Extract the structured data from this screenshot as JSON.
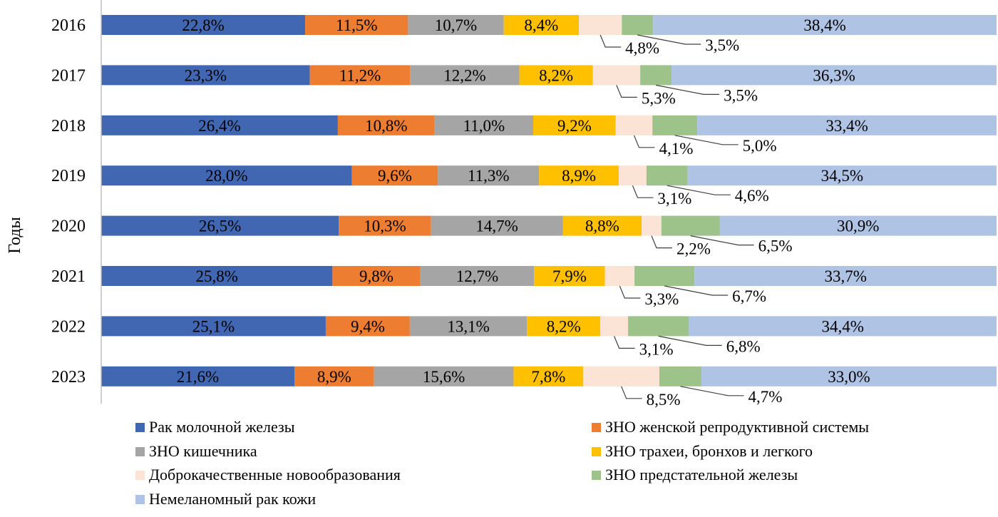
{
  "chart_data": {
    "type": "bar",
    "orientation": "horizontal",
    "stacked": true,
    "normalized": true,
    "ylabel": "Годы",
    "xlabel": "",
    "categories": [
      "2016",
      "2017",
      "2018",
      "2019",
      "2020",
      "2021",
      "2022",
      "2023"
    ],
    "series": [
      {
        "name": "Рак молочной железы",
        "color": "#4267B2",
        "values": [
          22.8,
          23.3,
          26.4,
          28.0,
          26.5,
          25.8,
          25.1,
          21.6
        ],
        "labels": [
          "22,8%",
          "23,3%",
          "26,4%",
          "28,0%",
          "26,5%",
          "25,8%",
          "25,1%",
          "21,6%"
        ]
      },
      {
        "name": "ЗНО женской репродуктивной системы",
        "color": "#ED7D31",
        "values": [
          11.5,
          11.2,
          10.8,
          9.6,
          10.3,
          9.8,
          9.4,
          8.9
        ],
        "labels": [
          "11,5%",
          "11,2%",
          "10,8%",
          "9,6%",
          "10,3%",
          "9,8%",
          "9,4%",
          "8,9%"
        ]
      },
      {
        "name": "ЗНО кишечника",
        "color": "#A5A5A5",
        "values": [
          10.7,
          12.2,
          11.0,
          11.3,
          14.7,
          12.7,
          13.1,
          15.6
        ],
        "labels": [
          "10,7%",
          "12,2%",
          "11,0%",
          "11,3%",
          "14,7%",
          "12,7%",
          "13,1%",
          "15,6%"
        ]
      },
      {
        "name": "ЗНО трахеи, бронхов и легкого",
        "color": "#FFC000",
        "values": [
          8.4,
          8.2,
          9.2,
          8.9,
          8.8,
          7.9,
          8.2,
          7.8
        ],
        "labels": [
          "8,4%",
          "8,2%",
          "9,2%",
          "8,9%",
          "8,8%",
          "7,9%",
          "8,2%",
          "7,8%"
        ]
      },
      {
        "name": "Доброкачественные новообразования",
        "color": "#FBE3D6",
        "values": [
          4.8,
          5.3,
          4.1,
          3.1,
          2.2,
          3.3,
          3.1,
          8.5
        ],
        "labels": [
          "4,8%",
          "5,3%",
          "4,1%",
          "3,1%",
          "2,2%",
          "3,3%",
          "3,1%",
          "8,5%"
        ]
      },
      {
        "name": "ЗНО предстательной железы",
        "color": "#9DC38A",
        "values": [
          3.5,
          3.5,
          5.0,
          4.6,
          6.5,
          6.7,
          6.8,
          4.7
        ],
        "labels": [
          "3,5%",
          "3,5%",
          "5,0%",
          "4,6%",
          "6,5%",
          "6,7%",
          "6,8%",
          "4,7%"
        ]
      },
      {
        "name": "Немеланомный рак кожи",
        "color": "#AFC3E4",
        "values": [
          38.4,
          36.3,
          33.4,
          34.5,
          30.9,
          33.7,
          34.4,
          33.0
        ],
        "labels": [
          "38,4%",
          "36,3%",
          "33,4%",
          "34,5%",
          "30,9%",
          "33,7%",
          "34,4%",
          "33,0%"
        ]
      }
    ],
    "outside_label_series": [
      4,
      5
    ],
    "legend_position": "bottom",
    "grid": false
  }
}
